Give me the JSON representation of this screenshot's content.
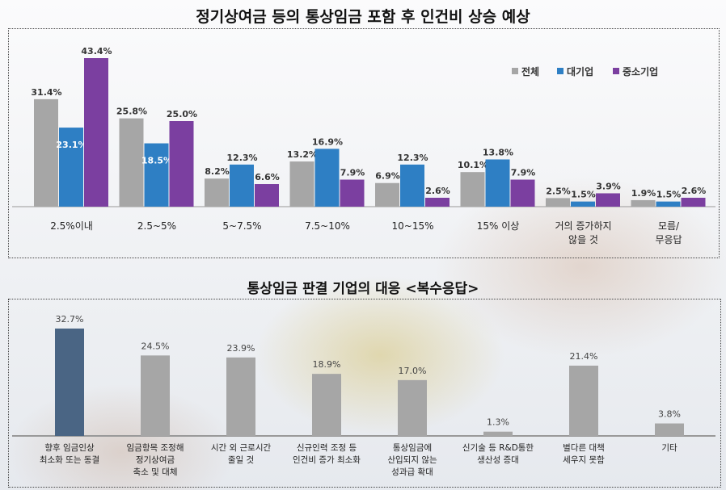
{
  "chart_data": [
    {
      "type": "bar",
      "title": "정기상여금 등의 통상임금 포함 후 인건비 상승 예상",
      "categories": [
        "2.5%이내",
        "2.5~5%",
        "5~7.5%",
        "7.5~10%",
        "10~15%",
        "15% 이상",
        "거의 증가하지 않을 것",
        "모름/ 무응답"
      ],
      "series": [
        {
          "name": "전체",
          "color": "#a6a6a6",
          "values": [
            31.4,
            25.8,
            8.2,
            13.2,
            6.9,
            10.1,
            2.5,
            1.9
          ],
          "labels": [
            "31.4%",
            "25.8%",
            "8.2%",
            "13.2%",
            "6.9%",
            "10.1%",
            "2.5%",
            "1.9%"
          ]
        },
        {
          "name": "대기업",
          "color": "#2e7fc4",
          "values": [
            23.1,
            18.5,
            12.3,
            16.9,
            12.3,
            13.8,
            1.5,
            1.5
          ],
          "labels": [
            "23.1%",
            "18.5%",
            "12.3%",
            "16.9%",
            "12.3%",
            "13.8%",
            "1.5%",
            "1.5%"
          ]
        },
        {
          "name": "중소기업",
          "color": "#7b3fa0",
          "values": [
            43.4,
            25.0,
            6.6,
            7.9,
            2.6,
            7.9,
            3.9,
            2.6
          ],
          "labels": [
            "43.4%",
            "25.0%",
            "6.6%",
            "7.9%",
            "2.6%",
            "7.9%",
            "3.9%",
            "2.6%"
          ]
        }
      ],
      "legend": "top-right",
      "ylim": [
        0,
        45
      ],
      "grid": false
    },
    {
      "type": "bar",
      "title": "통상임금 판결 기업의 대응 <복수응답>",
      "categories": [
        "향후 임금인상|최소화 또는 동결",
        "임금항목 조정해|정기상여금|축소 및 대체",
        "시간 외 근로시간|줄일 것",
        "신규인력 조정 등|인건비 증가 최소화",
        "통상임금에|산입되지 않는|성과급 확대",
        "신기술 등 R&D통한|생산성 증대",
        "별다른 대책|세우지 못함",
        "기타"
      ],
      "values": [
        32.7,
        24.5,
        23.9,
        18.9,
        17.0,
        1.3,
        21.4,
        3.8
      ],
      "labels": [
        "32.7%",
        "24.5%",
        "23.9%",
        "18.9%",
        "17.0%",
        "1.3%",
        "21.4%",
        "3.8%"
      ],
      "colors": {
        "highlight": "#4a6584",
        "default": "#a6a6a6"
      },
      "ylim": [
        0,
        35
      ],
      "grid": false
    }
  ]
}
